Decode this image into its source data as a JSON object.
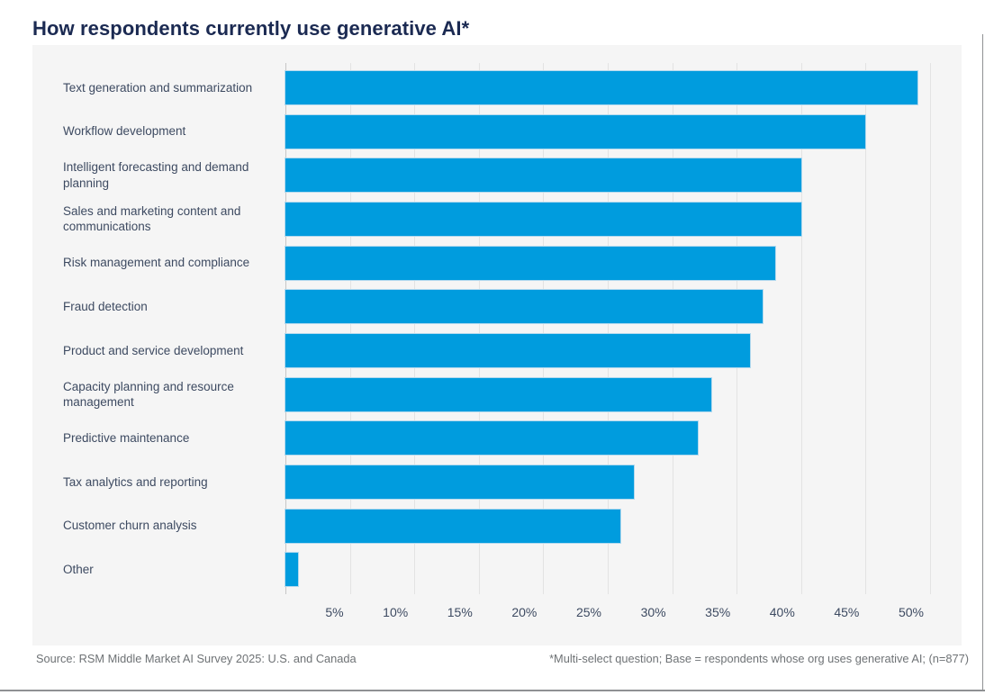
{
  "page": {
    "title": "How respondents currently use generative AI*",
    "source": "Source: RSM Middle Market AI Survey 2025: U.S. and Canada",
    "footnote": "*Multi-select question; Base = respondents whose org uses generative AI; (n=877)"
  },
  "colors": {
    "bar": "#009cde",
    "title": "#1b2a52",
    "label_text": "#3d4a61",
    "panel_background": "#f5f5f5",
    "gridline": "#e3e3e3",
    "axis_line": "#c6c6c6",
    "footer_text": "#6e7275",
    "page_border": "#8f9193"
  },
  "chart_data": {
    "type": "bar",
    "orientation": "horizontal",
    "title": "How respondents currently use generative AI*",
    "categories": [
      "Text generation and summarization",
      "Workflow development",
      "Intelligent forecasting and demand planning",
      "Sales and marketing content and communications",
      "Risk management and compliance",
      "Fraud detection",
      "Product and service development",
      "Capacity planning and resource management",
      "Predictive maintenance",
      "Tax analytics and reporting",
      "Customer churn analysis",
      "Other"
    ],
    "values": [
      49,
      45,
      40,
      40,
      38,
      37,
      36,
      33,
      32,
      27,
      26,
      1
    ],
    "unit": "%",
    "xlabel": "",
    "ylabel": "",
    "xlim": [
      0,
      50
    ],
    "xtick_values": [
      5,
      10,
      15,
      20,
      25,
      30,
      35,
      40,
      45,
      50
    ],
    "xtick_labels": [
      "5%",
      "10%",
      "15%",
      "20%",
      "25%",
      "30%",
      "35%",
      "40%",
      "45%",
      "50%"
    ],
    "grid": true,
    "legend": false
  }
}
